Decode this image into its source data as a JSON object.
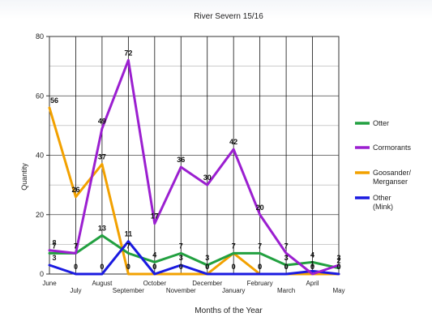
{
  "chart_data": {
    "type": "line",
    "title": "River Severn 15/16",
    "xlabel": "Months of the Year",
    "ylabel": "Quantity",
    "ylim": [
      0,
      80
    ],
    "yticks": [
      0,
      20,
      40,
      60,
      80
    ],
    "grid": true,
    "legend_position": "right",
    "categories": [
      "June",
      "July",
      "August",
      "September",
      "October",
      "November",
      "December",
      "January",
      "February",
      "March",
      "April",
      "May"
    ],
    "series": [
      {
        "name": "Otter",
        "color": "#22a040",
        "values": [
          7,
          7,
          13,
          7,
          4,
          7,
          3,
          7,
          7,
          3,
          4,
          2
        ]
      },
      {
        "name": "Cormorants",
        "color": "#9b1fd0",
        "values": [
          8,
          7,
          49,
          72,
          17,
          36,
          30,
          42,
          20,
          7,
          0,
          3
        ]
      },
      {
        "name": "Goosander/ Merganser",
        "color": "#f2a100",
        "values": [
          56,
          26,
          37,
          0,
          0,
          0,
          0,
          7,
          0,
          0,
          0,
          0
        ]
      },
      {
        "name": "Other (Mink)",
        "color": "#1a1ae0",
        "values": [
          3,
          0,
          0,
          11,
          0,
          3,
          0,
          0,
          0,
          0,
          1,
          0
        ]
      }
    ]
  }
}
